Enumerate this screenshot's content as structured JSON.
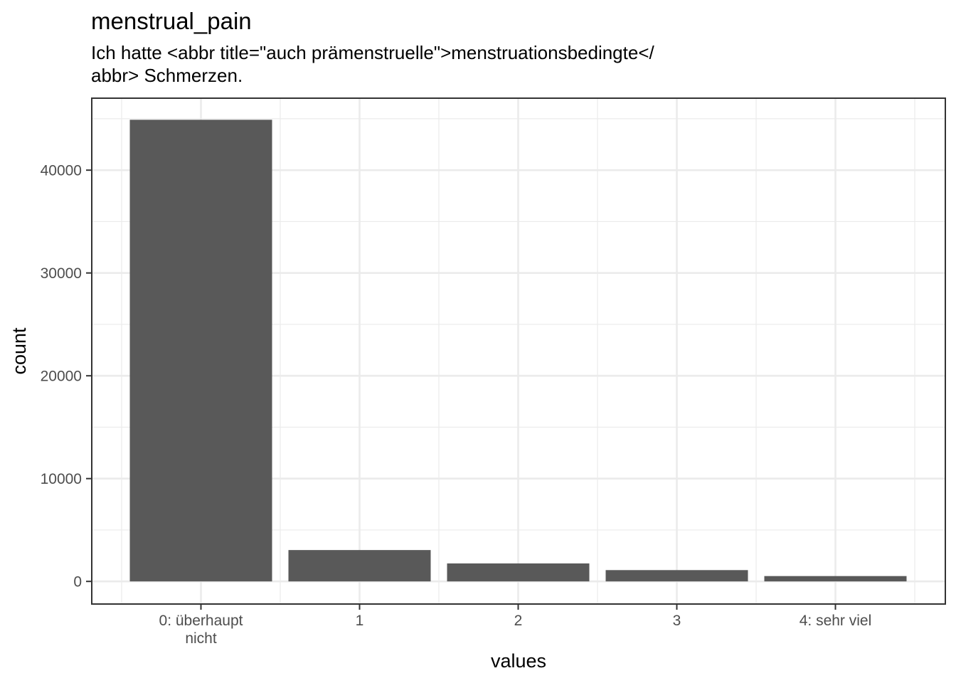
{
  "chart_data": {
    "type": "bar",
    "title": "menstrual_pain",
    "subtitle_lines": [
      "Ich hatte <abbr title=\"auch prämenstruelle\">menstruationsbedingte</",
      "abbr> Schmerzen."
    ],
    "xlabel": "values",
    "ylabel": "count",
    "categories": [
      {
        "lines": [
          "0: überhaupt",
          "nicht"
        ]
      },
      {
        "lines": [
          "1"
        ]
      },
      {
        "lines": [
          "2"
        ]
      },
      {
        "lines": [
          "3"
        ]
      },
      {
        "lines": [
          "4: sehr viel"
        ]
      }
    ],
    "values": [
      44900,
      3050,
      1750,
      1100,
      520
    ],
    "ylim": [
      -2200,
      47000
    ],
    "yticks": [
      0,
      10000,
      20000,
      30000,
      40000
    ],
    "ytick_labels": [
      "0",
      "10000",
      "20000",
      "30000",
      "40000"
    ],
    "grid": true,
    "legend": "none",
    "colors": {
      "bar": "#595959",
      "grid": "#ebebeb",
      "panel_border": "#333333",
      "tick": "#333333"
    }
  }
}
